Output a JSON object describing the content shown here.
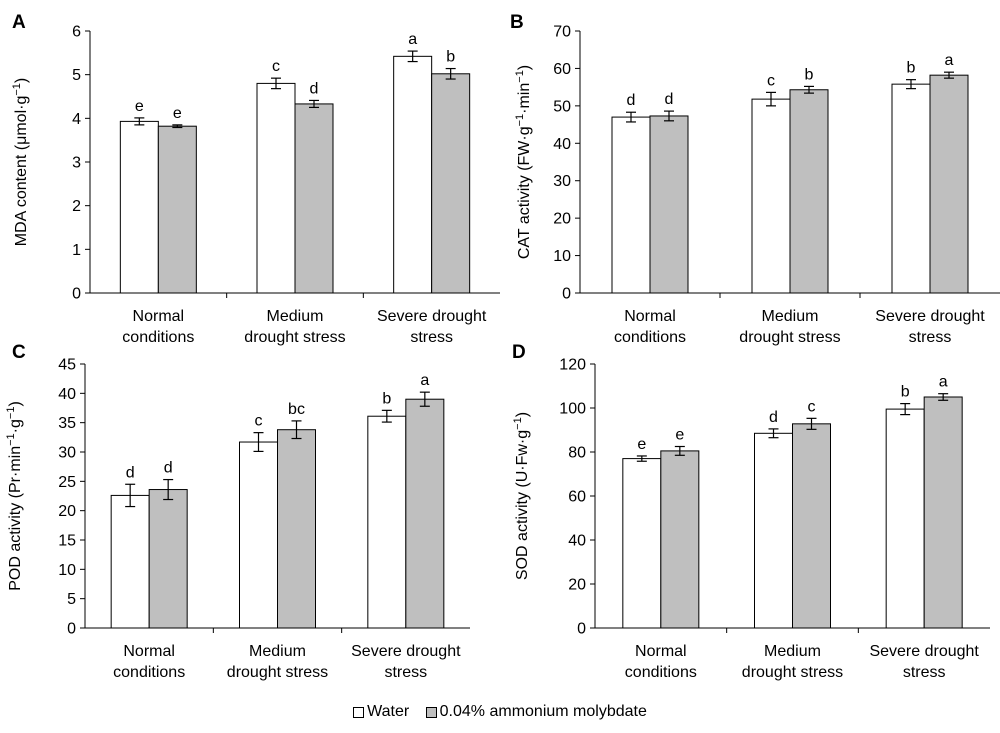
{
  "legend": {
    "water_label": "Water",
    "molybdate_label": "0.04% ammonium molybdate",
    "water_color": "#ffffff",
    "molybdate_color": "#bfbfbf"
  },
  "chart_data": [
    {
      "panel": "A",
      "type": "bar",
      "ylabel": "MDA content (μmol·g",
      "ylabel_sup": "−1",
      "ylabel_end": ")",
      "ylim": [
        0,
        6
      ],
      "yticks": [
        0,
        1,
        2,
        3,
        4,
        5,
        6
      ],
      "categories": [
        [
          "Normal",
          "conditions"
        ],
        [
          "Medium",
          "drought stress"
        ],
        [
          "Severe drought",
          "stress"
        ]
      ],
      "series": [
        {
          "name": "Water",
          "values": [
            3.93,
            4.8,
            5.42
          ],
          "errors": [
            0.08,
            0.12,
            0.12
          ],
          "letters": [
            "e",
            "c",
            "a"
          ]
        },
        {
          "name": "0.04% ammonium molybdate",
          "values": [
            3.82,
            4.33,
            5.02
          ],
          "errors": [
            0.03,
            0.08,
            0.12
          ],
          "letters": [
            "e",
            "d",
            "b"
          ]
        }
      ]
    },
    {
      "panel": "B",
      "type": "bar",
      "ylabel": "CAT activity (FW·g",
      "ylabel_sup": "−1",
      "ylabel_mid": "·min",
      "ylabel_sup2": "−1",
      "ylabel_end": ")",
      "ylim": [
        0,
        70
      ],
      "yticks": [
        0,
        10,
        20,
        30,
        40,
        50,
        60,
        70
      ],
      "categories": [
        [
          "Normal",
          "conditions"
        ],
        [
          "Medium",
          "drought stress"
        ],
        [
          "Severe drought",
          "stress"
        ]
      ],
      "series": [
        {
          "name": "Water",
          "values": [
            47.0,
            51.8,
            55.8
          ],
          "errors": [
            1.3,
            1.8,
            1.2
          ],
          "letters": [
            "d",
            "c",
            "b"
          ]
        },
        {
          "name": "0.04% ammonium molybdate",
          "values": [
            47.3,
            54.3,
            58.2
          ],
          "errors": [
            1.3,
            0.9,
            0.8
          ],
          "letters": [
            "d",
            "b",
            "a"
          ]
        }
      ]
    },
    {
      "panel": "C",
      "type": "bar",
      "ylabel": "POD activity (Pr·min",
      "ylabel_sup": "−1",
      "ylabel_mid": "·g",
      "ylabel_sup2": "−1",
      "ylabel_end": ")",
      "ylim": [
        0,
        45
      ],
      "yticks": [
        0,
        5,
        10,
        15,
        20,
        25,
        30,
        35,
        40,
        45
      ],
      "categories": [
        [
          "Normal",
          "conditions"
        ],
        [
          "Medium",
          "drought stress"
        ],
        [
          "Severe drought",
          "stress"
        ]
      ],
      "series": [
        {
          "name": "Water",
          "values": [
            22.6,
            31.7,
            36.1
          ],
          "errors": [
            1.9,
            1.6,
            1.0
          ],
          "letters": [
            "d",
            "c",
            "b"
          ]
        },
        {
          "name": "0.04% ammonium molybdate",
          "values": [
            23.6,
            33.8,
            39.0
          ],
          "errors": [
            1.7,
            1.5,
            1.2
          ],
          "letters": [
            "d",
            "bc",
            "a"
          ]
        }
      ]
    },
    {
      "panel": "D",
      "type": "bar",
      "ylabel": "SOD activity (U·Fw·g",
      "ylabel_sup": "−1",
      "ylabel_end": ")",
      "ylim": [
        0,
        120
      ],
      "yticks": [
        0,
        20,
        40,
        60,
        80,
        100,
        120
      ],
      "categories": [
        [
          "Normal",
          "conditions"
        ],
        [
          "Medium",
          "drought stress"
        ],
        [
          "Severe drought",
          "stress"
        ]
      ],
      "series": [
        {
          "name": "Water",
          "values": [
            77.0,
            88.5,
            99.5
          ],
          "errors": [
            1.2,
            2.0,
            2.5
          ],
          "letters": [
            "e",
            "d",
            "b"
          ]
        },
        {
          "name": "0.04% ammonium molybdate",
          "values": [
            80.5,
            92.8,
            105.0
          ],
          "errors": [
            2.0,
            2.5,
            1.5
          ],
          "letters": [
            "e",
            "c",
            "a"
          ]
        }
      ]
    }
  ]
}
